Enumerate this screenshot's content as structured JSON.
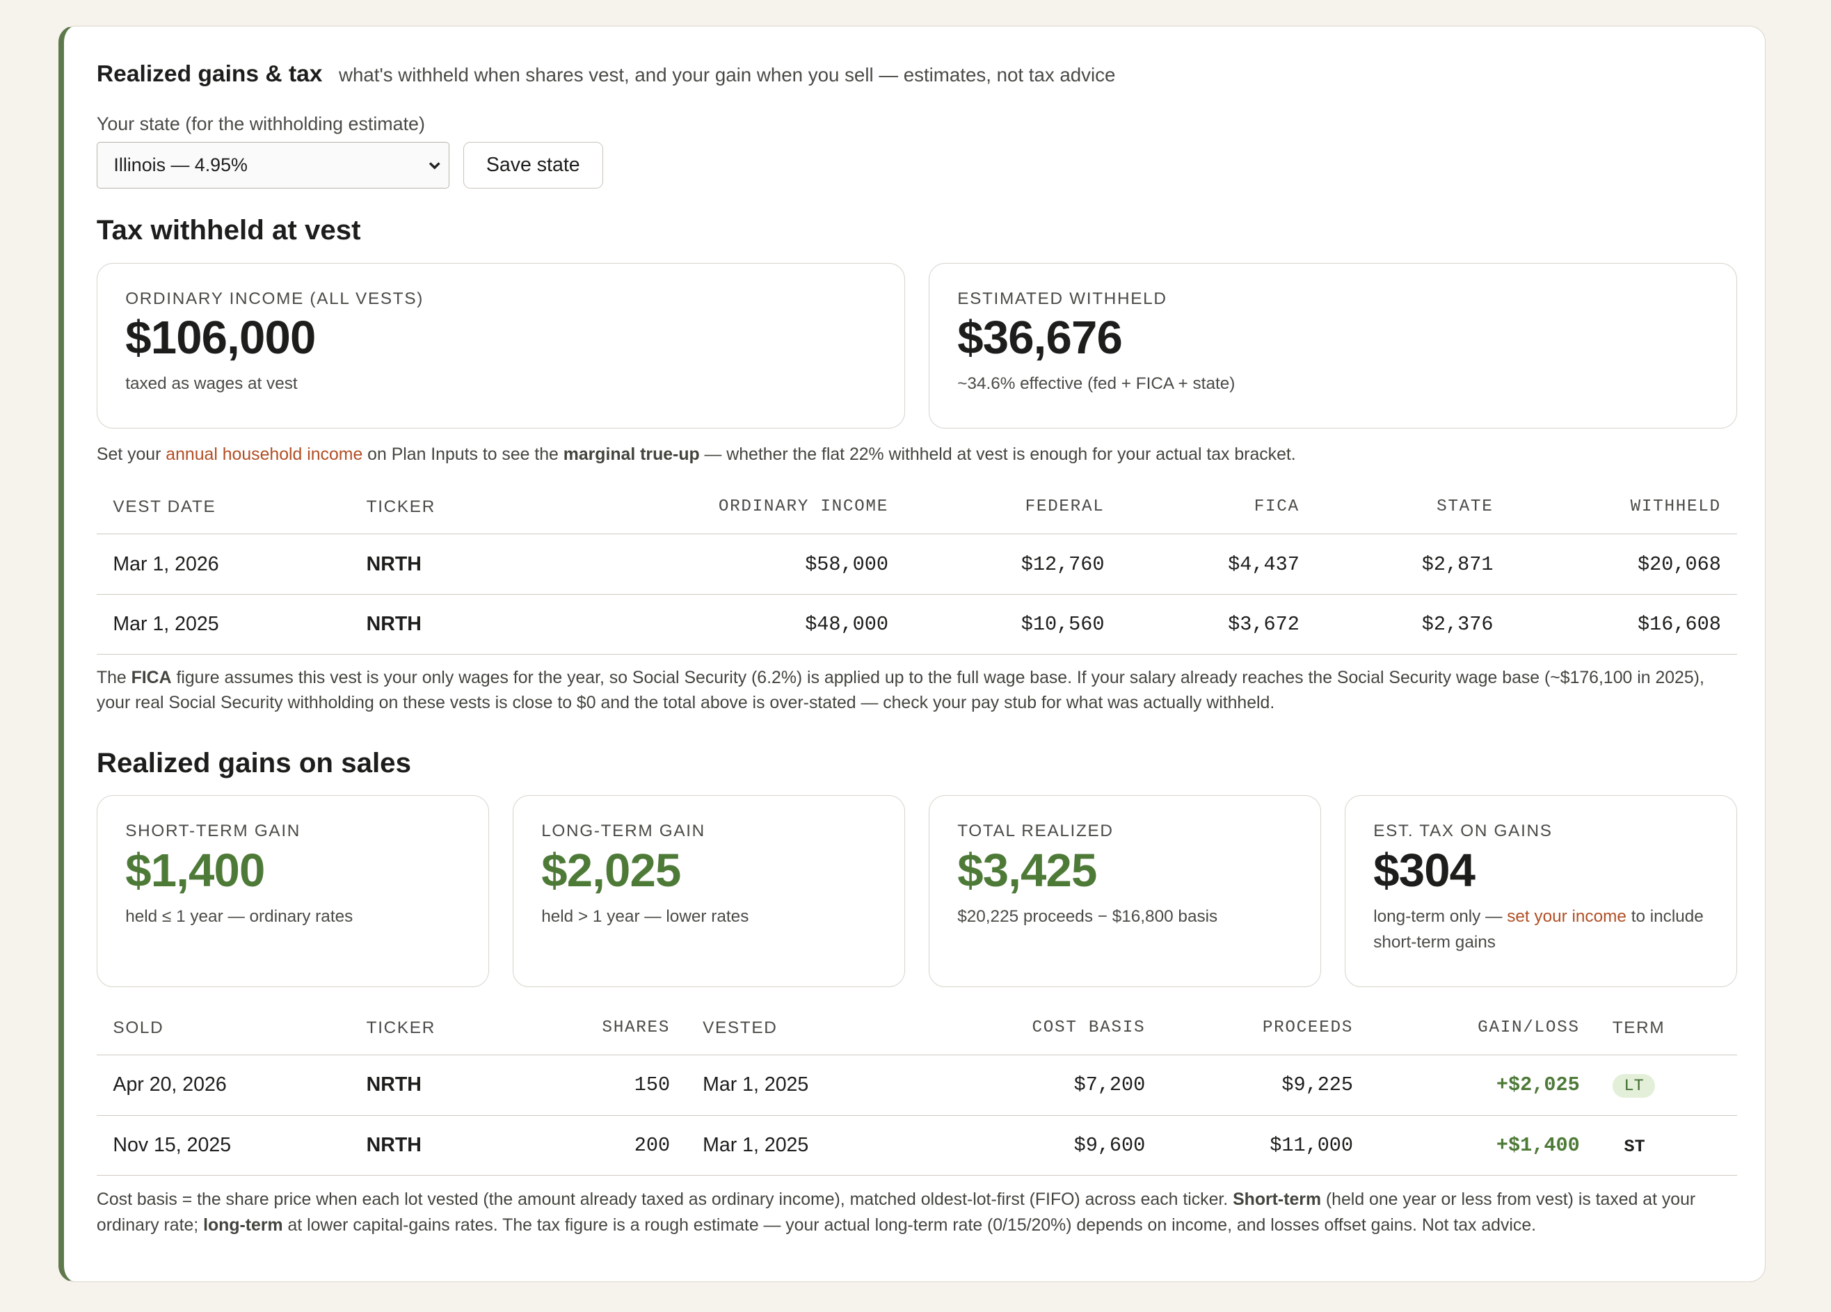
{
  "header": {
    "title": "Realized gains & tax",
    "subtitle": "what's withheld when shares vest, and your gain when you sell — estimates, not tax advice"
  },
  "state_picker": {
    "label": "Your state (for the withholding estimate)",
    "selected": "Illinois — 4.95%",
    "button": "Save state"
  },
  "withholding": {
    "heading": "Tax withheld at vest",
    "cards": [
      {
        "label": "ORDINARY INCOME (ALL VESTS)",
        "value": "$106,000",
        "note": "taxed as wages at vest"
      },
      {
        "label": "ESTIMATED WITHHELD",
        "value": "$36,676",
        "note": "~34.6% effective (fed + FICA + state)"
      }
    ],
    "notice": [
      "Set your ",
      "annual household income",
      " on Plan Inputs to see the ",
      "marginal true-up",
      " — whether the flat 22% withheld at vest is enough for your actual tax bracket."
    ],
    "table": {
      "columns": [
        "VEST DATE",
        "TICKER",
        "ORDINARY INCOME",
        "FEDERAL",
        "FICA",
        "STATE",
        "WITHHELD"
      ],
      "rows": [
        [
          "Mar 1, 2026",
          "NRTH",
          "$58,000",
          "$12,760",
          "$4,437",
          "$2,871",
          "$20,068"
        ],
        [
          "Mar 1, 2025",
          "NRTH",
          "$48,000",
          "$10,560",
          "$3,672",
          "$2,376",
          "$16,608"
        ]
      ]
    },
    "footnote": [
      "The ",
      "FICA",
      " figure assumes this vest is your only wages for the year, so Social Security (6.2%) is applied up to the full wage base. If your salary already reaches the Social Security wage base (~$176,100 in 2025), your real Social Security withholding on these vests is close to $0 and the total above is over-stated — check your pay stub for what was actually withheld."
    ]
  },
  "sales": {
    "heading": "Realized gains on sales",
    "cards": [
      {
        "label": "SHORT-TERM GAIN",
        "value": "$1,400",
        "note": "held ≤ 1 year — ordinary rates"
      },
      {
        "label": "LONG-TERM GAIN",
        "value": "$2,025",
        "note": "held > 1 year — lower rates"
      },
      {
        "label": "TOTAL REALIZED",
        "value": "$3,425",
        "note": "$20,225 proceeds − $16,800 basis"
      },
      {
        "label": "EST. TAX ON GAINS",
        "value": "$304",
        "note": [
          "long-term only — ",
          "set your income",
          " to include short-term gains"
        ]
      }
    ],
    "table": {
      "columns": [
        "SOLD",
        "TICKER",
        "SHARES",
        "VESTED",
        "COST BASIS",
        "PROCEEDS",
        "GAIN/LOSS",
        "TERM"
      ],
      "rows": [
        [
          "Apr 20, 2026",
          "NRTH",
          "150",
          "Mar 1, 2025",
          "$7,200",
          "$9,225",
          "+$2,025",
          "LT"
        ],
        [
          "Nov 15, 2025",
          "NRTH",
          "200",
          "Mar 1, 2025",
          "$9,600",
          "$11,000",
          "+$1,400",
          "ST"
        ]
      ]
    },
    "footnote": [
      "Cost basis = the share price when each lot vested (the amount already taxed as ordinary income), matched oldest-lot-first (FIFO) across each ticker. ",
      "Short-term",
      " (held one year or less from vest) is taxed at your ordinary rate; ",
      "long-term",
      " at lower capital-gains rates. The tax figure is a rough estimate — your actual long-term rate (0/15/20%) depends on income, and losses offset gains. Not tax advice."
    ]
  }
}
